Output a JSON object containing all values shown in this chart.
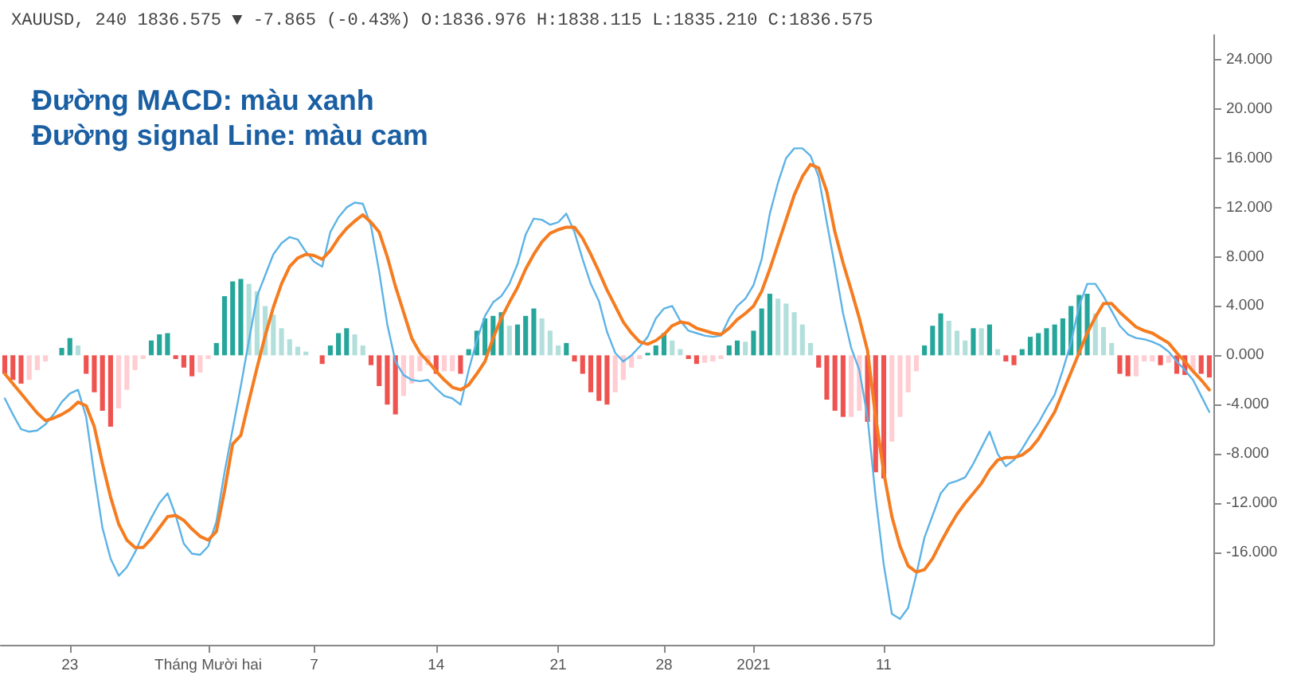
{
  "chart_data": {
    "type": "bar",
    "title": "XAUUSD, 240 1836.575 ▼ -7.865 (-0.43%) O:1836.976 H:1838.115 L:1835.210 C:1836.575",
    "annotations": [
      "Đường MACD: màu xanh",
      "Đường signal Line: màu cam"
    ],
    "categories": [
      null,
      null,
      null,
      null,
      null,
      null,
      null,
      null,
      "23",
      null,
      null,
      null,
      null,
      null,
      null,
      null,
      null,
      null,
      null,
      null,
      null,
      null,
      null,
      null,
      null,
      "Tháng Mười hai",
      null,
      null,
      null,
      null,
      null,
      null,
      null,
      null,
      null,
      null,
      null,
      null,
      "7",
      null,
      null,
      null,
      null,
      null,
      null,
      null,
      null,
      null,
      null,
      null,
      null,
      null,
      null,
      "14",
      null,
      null,
      null,
      null,
      null,
      null,
      null,
      null,
      null,
      null,
      null,
      null,
      null,
      null,
      "21",
      null,
      null,
      null,
      null,
      null,
      null,
      null,
      null,
      null,
      null,
      null,
      null,
      "28",
      null,
      null,
      null,
      null,
      null,
      null,
      null,
      null,
      null,
      null,
      "2021",
      null,
      null,
      null,
      null,
      null,
      null,
      null,
      null,
      null,
      null,
      null,
      null,
      null,
      null,
      null,
      "11",
      null,
      null,
      null,
      null,
      null,
      null,
      null,
      null,
      null,
      null,
      null,
      null,
      null,
      null,
      null,
      null,
      null,
      null,
      null,
      null,
      null,
      null,
      null,
      null,
      null,
      null,
      null,
      null,
      null,
      null,
      null,
      null,
      null,
      null,
      null,
      null,
      null,
      null,
      null,
      null
    ],
    "series": [
      {
        "values": [
          -1.5,
          -2.0,
          -2.3,
          -2.0,
          -1.2,
          -0.5,
          null,
          0.6,
          1.4,
          0.8,
          -1.5,
          -3.0,
          -4.5,
          -5.8,
          -4.3,
          -2.8,
          -1.2,
          -0.3,
          1.2,
          1.7,
          1.8,
          -0.3,
          -1.0,
          -1.7,
          -1.4,
          -0.3,
          1.0,
          4.8,
          6.0,
          6.2,
          5.8,
          5.2,
          4.0,
          3.3,
          2.2,
          1.3,
          0.7,
          0.3,
          null,
          -0.7,
          0.8,
          1.8,
          2.2,
          1.7,
          0.8,
          -0.8,
          -2.5,
          -4.0,
          -4.8,
          -3.3,
          -2.3,
          -1.3,
          -0.8,
          -1.5,
          -1.3,
          -1.3,
          -1.5,
          0.5,
          2.0,
          3.0,
          3.2,
          3.5,
          2.4,
          2.5,
          3.2,
          3.8,
          3.0,
          2.0,
          0.8,
          1.0,
          -0.5,
          -1.5,
          -3.0,
          -3.7,
          -4.0,
          -3.0,
          -2.0,
          -1.0,
          -0.3,
          0.2,
          0.8,
          1.8,
          1.2,
          0.5,
          -0.3,
          -0.7,
          -0.6,
          -0.5,
          -0.3,
          0.8,
          1.2,
          1.1,
          2.0,
          3.8,
          5.0,
          4.6,
          4.2,
          3.5,
          2.5,
          1.0,
          -1.0,
          -3.6,
          -4.5,
          -5.0,
          -5.0,
          -4.5,
          -5.4,
          -9.5,
          -10.0,
          -7.0,
          -5.0,
          -3.0,
          -1.3,
          0.8,
          2.4,
          3.4,
          2.8,
          2.0,
          1.2,
          2.2,
          2.2,
          2.5,
          0.5,
          -0.5,
          -0.8,
          0.5,
          1.5,
          1.8,
          2.2,
          2.5,
          3.0,
          4.0,
          4.9,
          5.0,
          3.4,
          2.3,
          1.0,
          -1.5,
          -1.7,
          -1.7,
          -0.5,
          -0.5,
          -0.8,
          -0.6,
          -1.5,
          -1.6,
          -1.3,
          -1.5,
          -1.8
        ],
        "colors": [
          "#ef5350",
          "#ef5350",
          "#ef5350",
          "#ffcdd2",
          "#ffcdd2",
          "#ffcdd2",
          "#ffcdd2",
          "#26a69a",
          "#26a69a",
          "#b2dfdb",
          "#ef5350",
          "#ef5350",
          "#ef5350",
          "#ef5350",
          "#ffcdd2",
          "#ffcdd2",
          "#ffcdd2",
          "#ffcdd2",
          "#26a69a",
          "#26a69a",
          "#26a69a",
          "#ef5350",
          "#ef5350",
          "#ef5350",
          "#ffcdd2",
          "#ffcdd2",
          "#26a69a",
          "#26a69a",
          "#26a69a",
          "#26a69a",
          "#b2dfdb",
          "#b2dfdb",
          "#b2dfdb",
          "#b2dfdb",
          "#b2dfdb",
          "#b2dfdb",
          "#b2dfdb",
          "#b2dfdb",
          "#b2dfdb",
          "#ef5350",
          "#26a69a",
          "#26a69a",
          "#26a69a",
          "#b2dfdb",
          "#b2dfdb",
          "#ef5350",
          "#ef5350",
          "#ef5350",
          "#ef5350",
          "#ffcdd2",
          "#ffcdd2",
          "#ffcdd2",
          "#ffcdd2",
          "#ef5350",
          "#ffcdd2",
          "#ffcdd2",
          "#ef5350",
          "#26a69a",
          "#26a69a",
          "#26a69a",
          "#26a69a",
          "#26a69a",
          "#b2dfdb",
          "#26a69a",
          "#26a69a",
          "#26a69a",
          "#b2dfdb",
          "#b2dfdb",
          "#b2dfdb",
          "#26a69a",
          "#ef5350",
          "#ef5350",
          "#ef5350",
          "#ef5350",
          "#ef5350",
          "#ffcdd2",
          "#ffcdd2",
          "#ffcdd2",
          "#ffcdd2",
          "#26a69a",
          "#26a69a",
          "#26a69a",
          "#b2dfdb",
          "#b2dfdb",
          "#ef5350",
          "#ef5350",
          "#ffcdd2",
          "#ffcdd2",
          "#ffcdd2",
          "#26a69a",
          "#26a69a",
          "#b2dfdb",
          "#26a69a",
          "#26a69a",
          "#26a69a",
          "#b2dfdb",
          "#b2dfdb",
          "#b2dfdb",
          "#b2dfdb",
          "#b2dfdb",
          "#ef5350",
          "#ef5350",
          "#ef5350",
          "#ef5350",
          "#ffcdd2",
          "#ffcdd2",
          "#ef5350",
          "#ef5350",
          "#ef5350",
          "#ffcdd2",
          "#ffcdd2",
          "#ffcdd2",
          "#ffcdd2",
          "#26a69a",
          "#26a69a",
          "#26a69a",
          "#b2dfdb",
          "#b2dfdb",
          "#b2dfdb",
          "#26a69a",
          "#b2dfdb",
          "#26a69a",
          "#b2dfdb",
          "#ef5350",
          "#ef5350",
          "#26a69a",
          "#26a69a",
          "#26a69a",
          "#26a69a",
          "#26a69a",
          "#26a69a",
          "#26a69a",
          "#26a69a",
          "#26a69a",
          "#b2dfdb",
          "#b2dfdb",
          "#b2dfdb",
          "#ef5350",
          "#ef5350",
          "#ffcdd2",
          "#ffcdd2",
          "#ffcdd2",
          "#ef5350",
          "#ffcdd2",
          "#ef5350",
          "#ef5350",
          "#ffcdd2",
          "#ef5350",
          "#ef5350"
        ]
      },
      {
        "type": "line",
        "color": "#5db3e6",
        "values": [
          -3.5,
          -4.8,
          -6.0,
          -6.2,
          -6.1,
          -5.6,
          -4.8,
          -3.8,
          -3.1,
          -2.8,
          -5.0,
          -9.7,
          -14.0,
          -16.5,
          -17.9,
          -17.2,
          -16.0,
          -14.5,
          -13.2,
          -12.0,
          -11.2,
          -13.0,
          -15.3,
          -16.1,
          -16.2,
          -15.5,
          -13.5,
          -9.5,
          -6.0,
          -2.5,
          1.2,
          4.8,
          6.5,
          8.2,
          9.1,
          9.6,
          9.4,
          8.4,
          7.6,
          7.2,
          10.0,
          11.2,
          12.0,
          12.4,
          12.3,
          10.5,
          6.8,
          2.5,
          -0.5,
          -1.6,
          -2.0,
          -2.1,
          -2.0,
          -2.7,
          -3.3,
          -3.5,
          -4.0,
          -1.2,
          1.2,
          3.2,
          4.3,
          4.8,
          5.8,
          7.4,
          9.8,
          11.1,
          11.0,
          10.6,
          10.8,
          11.5,
          10.0,
          7.8,
          5.8,
          4.4,
          1.9,
          0.2,
          -0.5,
          0.0,
          0.7,
          1.5,
          3.0,
          3.8,
          4.0,
          2.8,
          2.0,
          1.8,
          1.6,
          1.5,
          1.6,
          3.0,
          4.0,
          4.6,
          5.7,
          7.8,
          11.5,
          14.0,
          16.0,
          16.8,
          16.8,
          16.2,
          14.5,
          10.8,
          7.2,
          3.4,
          0.6,
          -1.2,
          -5.0,
          -11.5,
          -17.0,
          -21.0,
          -21.4,
          -20.5,
          -17.8,
          -14.8,
          -13.0,
          -11.2,
          -10.4,
          -10.2,
          -9.9,
          -8.8,
          -7.5,
          -6.2,
          -8.0,
          -9.0,
          -8.5,
          -7.6,
          -6.5,
          -5.5,
          -4.3,
          -3.2,
          -1.2,
          1.0,
          4.0,
          5.8,
          5.8,
          4.8,
          3.6,
          2.4,
          1.7,
          1.4,
          1.3,
          1.1,
          0.8,
          0.3,
          -0.5,
          -1.2,
          -2.0,
          -3.3,
          -4.6
        ]
      },
      {
        "type": "line",
        "color": "#f57c20",
        "values": [
          -1.5,
          -2.3,
          -3.1,
          -3.9,
          -4.7,
          -5.3,
          -5.1,
          -4.8,
          -4.4,
          -3.8,
          -4.1,
          -5.8,
          -8.8,
          -11.5,
          -13.7,
          -15.0,
          -15.6,
          -15.6,
          -14.9,
          -14.0,
          -13.1,
          -13.0,
          -13.4,
          -14.1,
          -14.7,
          -15.0,
          -14.3,
          -11.0,
          -7.2,
          -6.5,
          -3.7,
          -1.0,
          1.6,
          3.9,
          5.8,
          7.2,
          7.9,
          8.2,
          8.1,
          7.8,
          8.5,
          9.5,
          10.3,
          10.9,
          11.4,
          10.8,
          10.0,
          8.0,
          5.6,
          3.5,
          1.4,
          0.2,
          -0.5,
          -1.3,
          -2.0,
          -2.6,
          -2.8,
          -2.4,
          -1.5,
          -0.5,
          1.4,
          3.0,
          4.3,
          5.5,
          7.0,
          8.2,
          9.2,
          9.9,
          10.2,
          10.4,
          10.4,
          9.5,
          8.2,
          6.8,
          5.3,
          4.0,
          2.7,
          1.8,
          1.1,
          0.9,
          1.2,
          1.7,
          2.4,
          2.7,
          2.6,
          2.2,
          2.0,
          1.8,
          1.7,
          2.2,
          2.9,
          3.4,
          4.0,
          5.2,
          7.0,
          9.0,
          11.0,
          13.0,
          14.5,
          15.5,
          15.2,
          13.3,
          10.0,
          7.5,
          5.3,
          3.0,
          0.4,
          -5.0,
          -9.5,
          -13.1,
          -15.5,
          -17.1,
          -17.6,
          -17.4,
          -16.5,
          -15.2,
          -14.0,
          -12.9,
          -12.0,
          -11.2,
          -10.4,
          -9.3,
          -8.5,
          -8.3,
          -8.3,
          -8.1,
          -7.6,
          -6.8,
          -5.7,
          -4.6,
          -3.0,
          -1.4,
          0.2,
          1.8,
          3.1,
          4.2,
          4.2,
          3.5,
          2.9,
          2.3,
          2.0,
          1.8,
          1.4,
          1.0,
          0.2,
          -0.5,
          -1.3,
          -2.0,
          -2.8
        ]
      }
    ],
    "ylim": [
      -23.5,
      26
    ],
    "yticks": [
      {
        "value": -16,
        "label": "-16.000"
      },
      {
        "value": -12,
        "label": "-12.000"
      },
      {
        "value": -8,
        "label": "-8.000"
      },
      {
        "value": -4,
        "label": "-4.000"
      },
      {
        "value": 0,
        "label": "0.000"
      },
      {
        "value": 4,
        "label": "4.000"
      },
      {
        "value": 8,
        "label": "8.000"
      },
      {
        "value": 12,
        "label": "12.000"
      },
      {
        "value": 16,
        "label": "16.000"
      },
      {
        "value": 20,
        "label": "20.000"
      },
      {
        "value": 24,
        "label": "24.000"
      }
    ],
    "grid": false,
    "marker": "none"
  }
}
